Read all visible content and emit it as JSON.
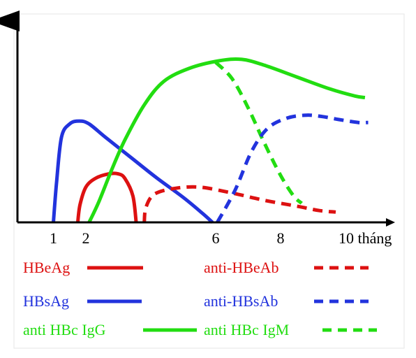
{
  "chart_data": {
    "type": "line",
    "title": "",
    "xlabel": "",
    "ylabel": "",
    "x_ticks": [
      {
        "x": 1,
        "label": "1"
      },
      {
        "x": 2,
        "label": "2"
      },
      {
        "x": 6,
        "label": "6"
      },
      {
        "x": 8,
        "label": "8"
      },
      {
        "x": 10,
        "label": "10 tháng"
      }
    ],
    "grid": false,
    "legend_position": "bottom",
    "series": [
      {
        "name": "HBsAg",
        "color": "#2233dd",
        "style": "solid",
        "points": [
          [
            1.0,
            0
          ],
          [
            1.1,
            0.28
          ],
          [
            1.25,
            0.58
          ],
          [
            1.5,
            0.67
          ],
          [
            1.8,
            0.69
          ],
          [
            2.1,
            0.67
          ],
          [
            2.6,
            0.58
          ],
          [
            3.4,
            0.44
          ],
          [
            4.2,
            0.3
          ],
          [
            5.0,
            0.17
          ],
          [
            5.6,
            0.06
          ],
          [
            5.9,
            0
          ]
        ]
      },
      {
        "name": "HBeAg",
        "color": "#dd1111",
        "style": "solid",
        "points": [
          [
            1.75,
            0
          ],
          [
            1.82,
            0.12
          ],
          [
            2.0,
            0.24
          ],
          [
            2.3,
            0.3
          ],
          [
            2.7,
            0.33
          ],
          [
            3.0,
            0.33
          ],
          [
            3.2,
            0.3
          ],
          [
            3.45,
            0.18
          ],
          [
            3.55,
            0
          ]
        ]
      },
      {
        "name": "anti HBc IgG",
        "color": "#22dd11",
        "style": "solid",
        "points": [
          [
            2.1,
            0
          ],
          [
            2.4,
            0.14
          ],
          [
            2.8,
            0.36
          ],
          [
            3.2,
            0.56
          ],
          [
            3.8,
            0.8
          ],
          [
            4.4,
            0.96
          ],
          [
            5.2,
            1.05
          ],
          [
            6.1,
            1.1
          ],
          [
            6.8,
            1.11
          ],
          [
            7.5,
            1.07
          ],
          [
            8.5,
            0.99
          ],
          [
            9.5,
            0.91
          ],
          [
            10.3,
            0.86
          ],
          [
            10.6,
            0.85
          ]
        ]
      },
      {
        "name": "anti HBc IgM",
        "color": "#22dd11",
        "style": "dashed",
        "points": [
          [
            6.0,
            1.09
          ],
          [
            6.5,
            0.98
          ],
          [
            7.0,
            0.78
          ],
          [
            7.5,
            0.54
          ],
          [
            8.0,
            0.32
          ],
          [
            8.4,
            0.18
          ],
          [
            8.65,
            0.13
          ]
        ]
      },
      {
        "name": "anti-HBeAb",
        "color": "#dd1111",
        "style": "dashed",
        "points": [
          [
            3.8,
            0
          ],
          [
            3.85,
            0.1
          ],
          [
            4.1,
            0.19
          ],
          [
            4.7,
            0.23
          ],
          [
            5.5,
            0.24
          ],
          [
            6.5,
            0.2
          ],
          [
            7.5,
            0.15
          ],
          [
            8.5,
            0.11
          ],
          [
            9.2,
            0.08
          ],
          [
            9.7,
            0.07
          ]
        ]
      },
      {
        "name": "anti-HBsAb",
        "color": "#2233dd",
        "style": "dashed",
        "points": [
          [
            6.05,
            0
          ],
          [
            6.6,
            0.22
          ],
          [
            7.1,
            0.48
          ],
          [
            7.6,
            0.64
          ],
          [
            8.2,
            0.71
          ],
          [
            8.8,
            0.73
          ],
          [
            9.3,
            0.72
          ],
          [
            9.8,
            0.7
          ],
          [
            10.4,
            0.68
          ],
          [
            10.7,
            0.68
          ]
        ]
      }
    ],
    "legend": [
      {
        "label": "HBeAg",
        "color": "#dd1111",
        "style": "solid"
      },
      {
        "label": "anti-HBeAb",
        "color": "#dd1111",
        "style": "dashed"
      },
      {
        "label": "HBsAg",
        "color": "#2233dd",
        "style": "solid"
      },
      {
        "label": "anti-HBsAb",
        "color": "#2233dd",
        "style": "dashed"
      },
      {
        "label": "anti HBc IgG",
        "color": "#22dd11",
        "style": "solid"
      },
      {
        "label": "anti HBc IgM",
        "color": "#22dd11",
        "style": "dashed"
      }
    ]
  }
}
